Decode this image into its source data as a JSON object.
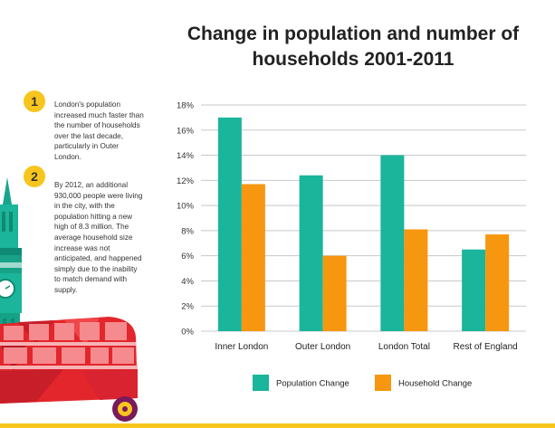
{
  "notes": [
    {
      "number": "1",
      "text": "London's population increased much faster than the number of households over the last decade, particularly in Outer London."
    },
    {
      "number": "2",
      "text": "By 2012, an additional 930,000 people were living in the city, with the population hitting a new high of 8.3 million. The average household size increase was not anticipated, and happened simply due to the inability to match demand with supply."
    }
  ],
  "colors": {
    "population": "#1ab59a",
    "household": "#f7960f",
    "accent": "#f7c51e",
    "grid": "#c8c8c8"
  },
  "chart_data": {
    "type": "bar",
    "title": "Change in population and number of households 2001-2011",
    "title_lines": [
      "Change in population and number of",
      "households 2001-2011"
    ],
    "categories": [
      "Inner London",
      "Outer London",
      "London Total",
      "Rest of England"
    ],
    "series": [
      {
        "name": "Population Change",
        "values": [
          17.0,
          12.4,
          14.0,
          6.5
        ]
      },
      {
        "name": "Household Change",
        "values": [
          11.7,
          6.0,
          8.1,
          7.7
        ]
      }
    ],
    "ylim": [
      0,
      18
    ],
    "yticks": [
      "0%",
      "2%",
      "4%",
      "6%",
      "8%",
      "10%",
      "12%",
      "14%",
      "16%",
      "18%"
    ],
    "xlabel": "",
    "ylabel": "",
    "grid": true,
    "legend": "bottom"
  }
}
